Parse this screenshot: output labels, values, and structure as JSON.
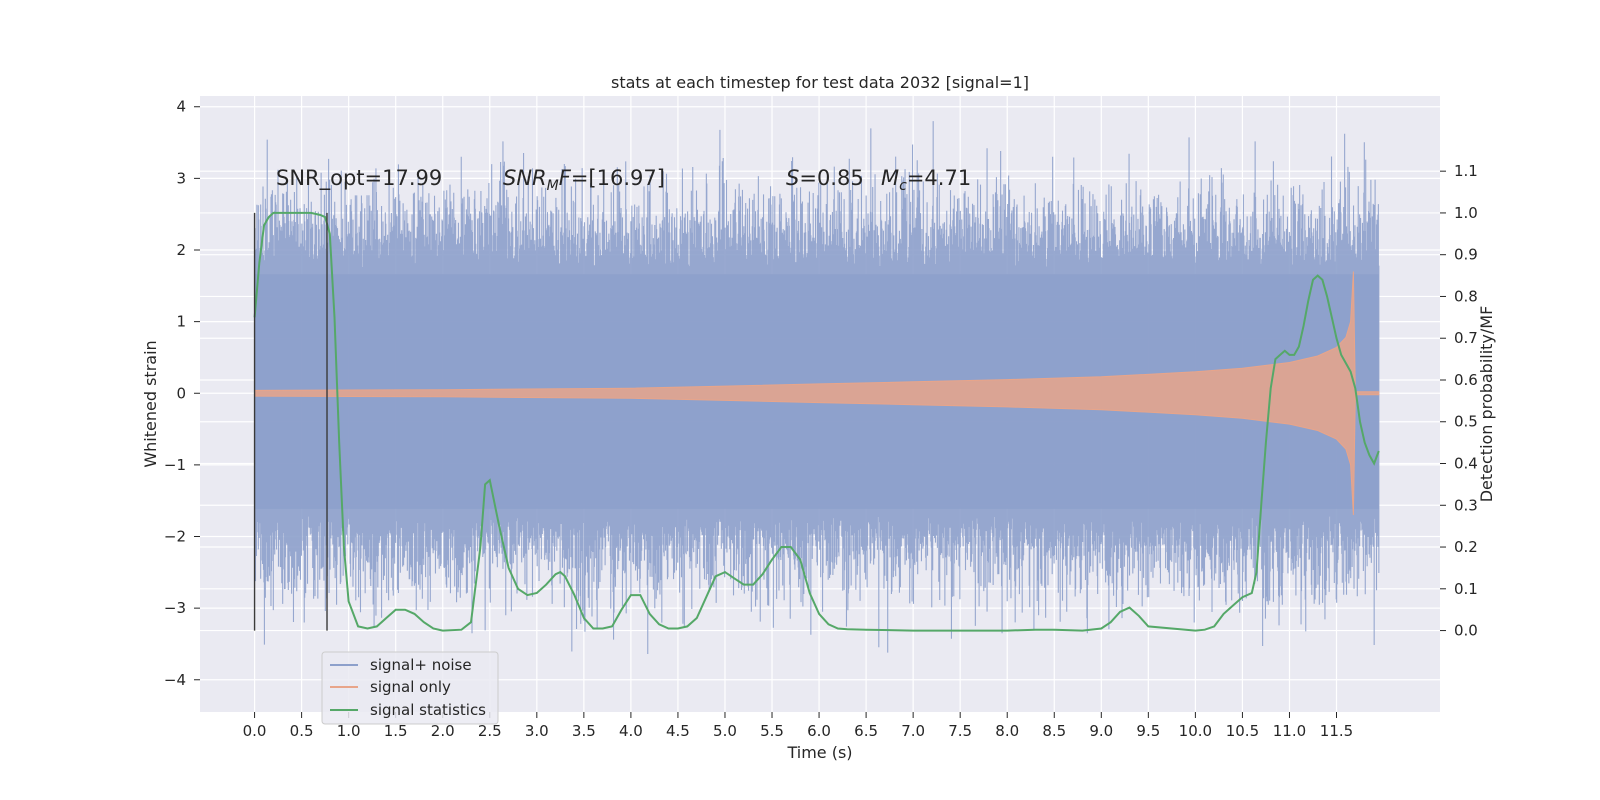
{
  "chart_data": {
    "type": "line",
    "title": "stats at each timestep for test data 2032 [signal=1]",
    "xlabel": "Time (s)",
    "ylabel_left": "Whitened strain",
    "ylabel_right": "Detection probability/MF",
    "xlim": [
      -0.58,
      12.6
    ],
    "ylim_left": [
      -4.45,
      4.15
    ],
    "ylim_right": [
      -0.195,
      1.28
    ],
    "x_ticks": [
      "0.0",
      "0.5",
      "1.0",
      "1.5",
      "2.0",
      "2.5",
      "3.0",
      "3.5",
      "4.0",
      "4.5",
      "5.0",
      "5.5",
      "6.0",
      "6.5",
      "7.0",
      "7.5",
      "8.0",
      "8.5",
      "9.0",
      "9.5",
      "10.0",
      "10.5",
      "11.0",
      "11.5"
    ],
    "y_ticks_left": [
      "4",
      "3",
      "2",
      "1",
      "0",
      "−1",
      "−2",
      "−3",
      "−4"
    ],
    "y_ticks_right": [
      "1.1",
      "1.0",
      "0.9",
      "0.8",
      "0.7",
      "0.6",
      "0.5",
      "0.4",
      "0.3",
      "0.2",
      "0.1",
      "0.0"
    ],
    "grid": true,
    "legend_position": "lower-left",
    "annotations": {
      "snr_opt": "SNR_opt=17.99",
      "snr_mf_main": "SNR",
      "snr_mf_sub": "M",
      "snr_mf_rest": "F=[16.97]",
      "s_main": "S",
      "s_rest": "=0.85",
      "mc_main": "M",
      "mc_sub": "c",
      "mc_rest": "=4.71"
    },
    "vlines": [
      {
        "x": 0.0,
        "ymin": 0.0,
        "ymax": 1.0
      },
      {
        "x": 0.77,
        "ymin": 0.0,
        "ymax": 1.0
      }
    ],
    "series": [
      {
        "name": "signal+ noise",
        "color": "#8da0cb",
        "axis": "left",
        "band": {
          "x_start": 0.0,
          "x_end": 11.95,
          "typical_low": -1.7,
          "typical_high": 1.75,
          "peak_low": -4.05,
          "peak_high": 3.8
        }
      },
      {
        "name": "signal only",
        "color": "#e8a58a",
        "axis": "left",
        "envelope": {
          "x": [
            0.0,
            2.0,
            4.0,
            5.0,
            6.0,
            7.0,
            8.0,
            9.0,
            10.0,
            10.5,
            11.0,
            11.3,
            11.5,
            11.6,
            11.65,
            11.68,
            11.7,
            11.95
          ],
          "amp": [
            0.04,
            0.05,
            0.07,
            0.1,
            0.13,
            0.16,
            0.19,
            0.23,
            0.3,
            0.35,
            0.43,
            0.52,
            0.64,
            0.78,
            1.0,
            1.7,
            0.02,
            0.02
          ]
        }
      },
      {
        "name": "signal statistics",
        "color": "#55a868",
        "axis": "right",
        "x": [
          0.0,
          0.05,
          0.1,
          0.15,
          0.2,
          0.3,
          0.4,
          0.5,
          0.6,
          0.7,
          0.75,
          0.8,
          0.85,
          0.9,
          0.95,
          1.0,
          1.1,
          1.2,
          1.3,
          1.4,
          1.5,
          1.6,
          1.7,
          1.8,
          1.9,
          2.0,
          2.2,
          2.3,
          2.4,
          2.45,
          2.5,
          2.6,
          2.7,
          2.8,
          2.9,
          3.0,
          3.1,
          3.2,
          3.25,
          3.3,
          3.4,
          3.5,
          3.6,
          3.7,
          3.8,
          3.9,
          4.0,
          4.1,
          4.2,
          4.3,
          4.4,
          4.5,
          4.6,
          4.7,
          4.8,
          4.9,
          5.0,
          5.1,
          5.2,
          5.3,
          5.4,
          5.5,
          5.6,
          5.7,
          5.8,
          5.9,
          6.0,
          6.1,
          6.2,
          6.3,
          6.5,
          7.0,
          7.5,
          8.0,
          8.3,
          8.5,
          8.8,
          9.0,
          9.1,
          9.2,
          9.3,
          9.4,
          9.5,
          10.0,
          10.1,
          10.2,
          10.3,
          10.4,
          10.5,
          10.6,
          10.65,
          10.7,
          10.75,
          10.8,
          10.85,
          10.9,
          10.95,
          11.0,
          11.05,
          11.1,
          11.15,
          11.2,
          11.25,
          11.3,
          11.35,
          11.4,
          11.45,
          11.5,
          11.55,
          11.6,
          11.65,
          11.7,
          11.75,
          11.8,
          11.85,
          11.9,
          11.95
        ],
        "values": [
          0.75,
          0.88,
          0.97,
          0.99,
          1.0,
          1.0,
          1.0,
          1.0,
          1.0,
          0.995,
          0.99,
          0.95,
          0.75,
          0.45,
          0.2,
          0.07,
          0.01,
          0.005,
          0.01,
          0.03,
          0.05,
          0.05,
          0.04,
          0.02,
          0.005,
          0.0,
          0.002,
          0.02,
          0.2,
          0.35,
          0.36,
          0.25,
          0.15,
          0.1,
          0.085,
          0.09,
          0.11,
          0.135,
          0.14,
          0.13,
          0.085,
          0.03,
          0.005,
          0.005,
          0.01,
          0.05,
          0.085,
          0.085,
          0.04,
          0.015,
          0.005,
          0.005,
          0.01,
          0.03,
          0.08,
          0.13,
          0.14,
          0.125,
          0.11,
          0.11,
          0.135,
          0.17,
          0.2,
          0.2,
          0.17,
          0.09,
          0.04,
          0.015,
          0.005,
          0.003,
          0.002,
          0.0,
          0.0,
          0.0,
          0.002,
          0.002,
          0.0,
          0.005,
          0.02,
          0.045,
          0.055,
          0.035,
          0.01,
          0.0,
          0.002,
          0.01,
          0.04,
          0.06,
          0.08,
          0.09,
          0.14,
          0.3,
          0.45,
          0.58,
          0.65,
          0.66,
          0.67,
          0.66,
          0.66,
          0.68,
          0.73,
          0.79,
          0.84,
          0.85,
          0.84,
          0.8,
          0.75,
          0.7,
          0.66,
          0.64,
          0.62,
          0.58,
          0.5,
          0.45,
          0.42,
          0.4,
          0.43
        ]
      }
    ]
  }
}
